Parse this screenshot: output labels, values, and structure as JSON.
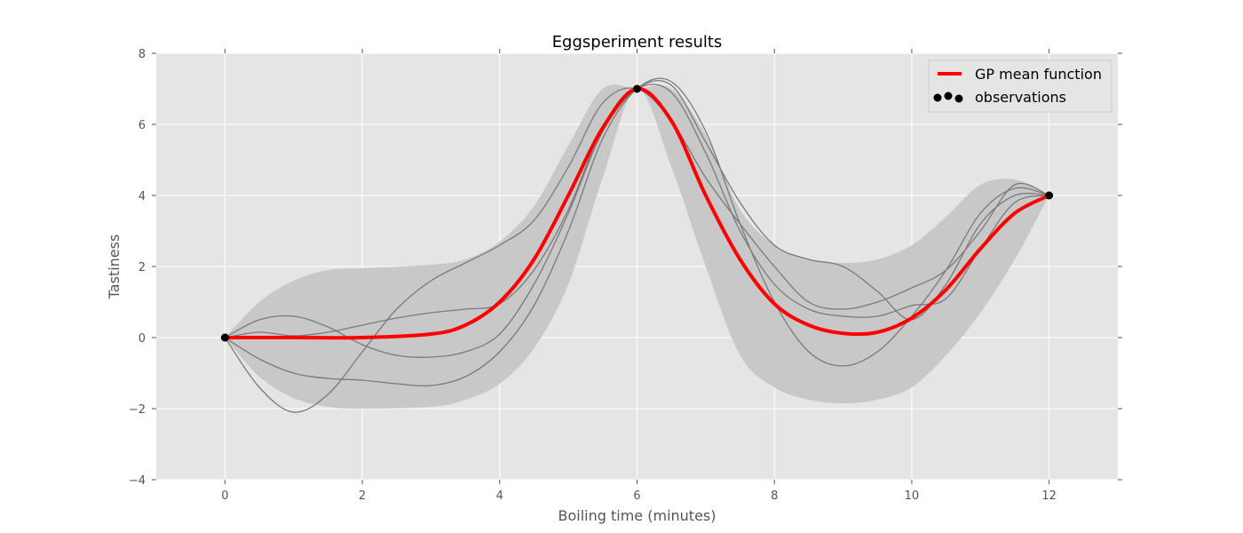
{
  "chart_data": {
    "type": "line",
    "title": "Eggsperiment results",
    "xlabel": "Boiling time (minutes)",
    "ylabel": "Tastiness",
    "xlim": [
      -1,
      13
    ],
    "ylim": [
      -4,
      8
    ],
    "xticks": [
      0,
      2,
      4,
      6,
      8,
      10,
      12
    ],
    "yticks": [
      -4,
      -2,
      0,
      2,
      4,
      6,
      8
    ],
    "xtick_labels": [
      "0",
      "2",
      "4",
      "6",
      "8",
      "10",
      "12"
    ],
    "ytick_labels": [
      "−4",
      "−2",
      "0",
      "2",
      "4",
      "6",
      "8"
    ],
    "grid": true,
    "legend_position": "top-right",
    "colors": {
      "mean": "#ff0000",
      "band": "#c8c8c8",
      "samples": "#7a7a7a",
      "observations": "#000000",
      "axes_bg": "#e5e5e5",
      "grid": "#ffffff"
    },
    "observations": {
      "name": "observations",
      "x": [
        0,
        6,
        12
      ],
      "y": [
        0,
        7,
        4
      ]
    },
    "mean": {
      "name": "GP mean function",
      "x": [
        0,
        1,
        2,
        3,
        3.5,
        4,
        4.5,
        5,
        5.5,
        6,
        6.5,
        7,
        7.5,
        8,
        8.5,
        9,
        9.5,
        10,
        10.5,
        11,
        11.5,
        12
      ],
      "y": [
        0,
        0,
        0,
        0.1,
        0.35,
        1.0,
        2.2,
        4.0,
        5.9,
        7.0,
        6.1,
        4.0,
        2.2,
        0.95,
        0.35,
        0.12,
        0.15,
        0.55,
        1.35,
        2.5,
        3.5,
        4.0
      ]
    },
    "confidence_band": {
      "x": [
        0,
        0.5,
        1,
        1.5,
        2,
        3,
        3.5,
        4,
        4.5,
        5,
        5.5,
        6,
        6.5,
        7,
        7.5,
        8,
        8.5,
        9,
        9.5,
        10,
        10.5,
        11,
        11.5,
        12
      ],
      "upper": [
        0,
        1.0,
        1.6,
        1.9,
        1.95,
        2.05,
        2.2,
        2.7,
        3.7,
        5.4,
        7.0,
        7.0,
        7.0,
        5.7,
        3.6,
        2.6,
        2.2,
        2.1,
        2.2,
        2.6,
        3.4,
        4.3,
        4.45,
        4.0
      ],
      "lower": [
        0,
        -1.1,
        -1.7,
        -1.95,
        -2.0,
        -1.95,
        -1.75,
        -1.3,
        -0.3,
        1.5,
        4.5,
        7.0,
        4.8,
        2.0,
        -0.5,
        -1.4,
        -1.75,
        -1.85,
        -1.75,
        -1.4,
        -0.5,
        0.7,
        2.2,
        4.0
      ]
    },
    "samples": [
      {
        "x": [
          0,
          0.5,
          1,
          1.5,
          2,
          2.5,
          3,
          3.5,
          4,
          4.5,
          5,
          5.5,
          6,
          6.5,
          7,
          7.5,
          8,
          8.5,
          9,
          9.5,
          10,
          10.5,
          11,
          11.5,
          12
        ],
        "y": [
          0,
          0.5,
          0.6,
          0.3,
          -0.2,
          -0.5,
          -0.55,
          -0.4,
          0.1,
          1.5,
          3.5,
          5.8,
          7.0,
          7.1,
          5.5,
          3.8,
          2.6,
          2.2,
          2.0,
          1.3,
          0.5,
          1.5,
          3.2,
          4.0,
          4.0
        ]
      },
      {
        "x": [
          0,
          0.5,
          1,
          1.5,
          2,
          2.5,
          3,
          3.5,
          4,
          4.5,
          5,
          5.5,
          6,
          6.5,
          7,
          7.5,
          8,
          8.5,
          9,
          9.5,
          10,
          10.5,
          11,
          11.5,
          12
        ],
        "y": [
          0,
          -0.6,
          -1.0,
          -1.15,
          -1.2,
          -1.3,
          -1.35,
          -1.1,
          -0.4,
          0.9,
          3.0,
          5.6,
          7.0,
          7.2,
          5.8,
          3.2,
          1.0,
          -0.4,
          -0.8,
          -0.4,
          0.6,
          1.9,
          3.5,
          4.2,
          4.0
        ]
      },
      {
        "x": [
          0,
          0.5,
          1,
          1.5,
          2,
          2.5,
          3,
          3.5,
          4,
          4.5,
          5,
          5.5,
          6,
          6.5,
          7,
          7.5,
          8,
          8.5,
          9,
          9.5,
          10,
          10.5,
          11,
          11.5,
          12
        ],
        "y": [
          0,
          -1.4,
          -2.1,
          -1.6,
          -0.4,
          0.8,
          1.6,
          2.1,
          2.6,
          3.3,
          4.8,
          6.6,
          7.0,
          6.1,
          4.5,
          3.2,
          2.0,
          1.0,
          0.8,
          1.0,
          1.4,
          1.9,
          3.0,
          4.3,
          4.0
        ]
      },
      {
        "x": [
          0,
          0.5,
          1,
          1.5,
          2,
          2.5,
          3,
          3.5,
          4,
          4.5,
          5,
          5.5,
          6,
          6.5,
          7,
          7.5,
          8,
          8.5,
          9,
          9.5,
          10,
          10.5,
          11,
          11.5,
          12
        ],
        "y": [
          0,
          0.15,
          0.05,
          0.15,
          0.35,
          0.55,
          0.7,
          0.8,
          0.95,
          1.9,
          3.6,
          5.9,
          7.0,
          6.9,
          5.2,
          3.0,
          1.5,
          0.8,
          0.6,
          0.6,
          0.9,
          1.1,
          2.5,
          3.8,
          4.0
        ]
      }
    ]
  }
}
